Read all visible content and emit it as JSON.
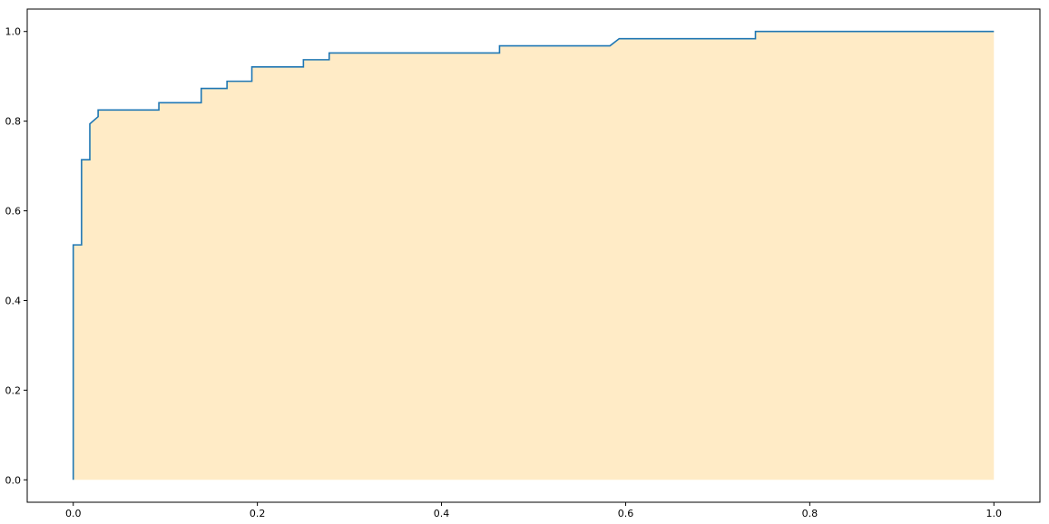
{
  "chart_data": {
    "type": "area",
    "title": "",
    "xlabel": "",
    "ylabel": "",
    "xlim": [
      -0.05,
      1.05
    ],
    "ylim": [
      -0.05,
      1.05
    ],
    "grid": false,
    "legend": "none",
    "x_ticks": [
      0.0,
      0.2,
      0.4,
      0.6,
      0.8,
      1.0
    ],
    "y_ticks": [
      0.0,
      0.2,
      0.4,
      0.6,
      0.8,
      1.0
    ],
    "x_tick_labels": [
      "0.0",
      "0.2",
      "0.4",
      "0.6",
      "0.8",
      "1.0"
    ],
    "y_tick_labels": [
      "0.0",
      "0.2",
      "0.4",
      "0.6",
      "0.8",
      "1.0"
    ],
    "line_color": "#1f77b4",
    "fill_color": "#ffebc6",
    "series": [
      {
        "x": [
          0.0,
          0.0,
          0.009,
          0.009,
          0.018,
          0.018,
          0.027,
          0.027,
          0.093,
          0.093,
          0.139,
          0.139,
          0.167,
          0.167,
          0.194,
          0.194,
          0.25,
          0.25,
          0.278,
          0.278,
          0.463,
          0.463,
          0.583,
          0.593,
          0.741,
          0.741,
          1.0
        ],
        "y": [
          0.0,
          0.524,
          0.524,
          0.714,
          0.714,
          0.794,
          0.81,
          0.825,
          0.825,
          0.841,
          0.841,
          0.873,
          0.873,
          0.889,
          0.889,
          0.921,
          0.921,
          0.937,
          0.937,
          0.952,
          0.952,
          0.968,
          0.968,
          0.984,
          0.984,
          1.0,
          1.0
        ]
      }
    ]
  }
}
